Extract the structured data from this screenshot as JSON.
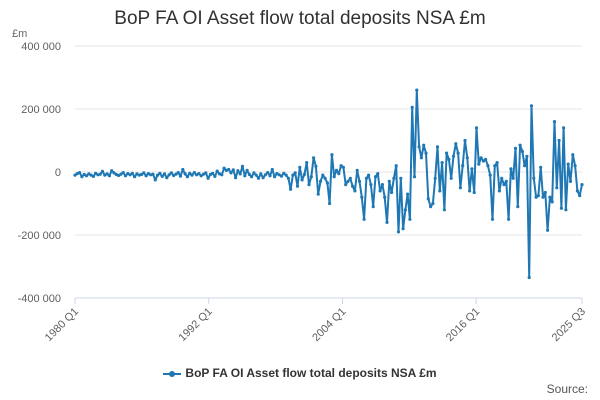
{
  "chart_data": {
    "type": "line",
    "title": "BoP FA OI Asset flow total deposits NSA £m",
    "ylabel": "£m",
    "ylim": [
      -400000,
      400000
    ],
    "y_ticks": [
      400000,
      200000,
      0,
      -200000,
      -400000
    ],
    "y_tick_labels": [
      "400 000",
      "200 000",
      "0",
      "-200 000",
      "-400 000"
    ],
    "x_tick_labels": [
      "1980 Q1",
      "1992 Q1",
      "2004 Q1",
      "2016 Q1",
      "2025 Q3"
    ],
    "x_range": [
      "1980 Q1",
      "2025 Q3"
    ],
    "legend_position": "bottom",
    "grid": "horizontal",
    "color": "#1f78b4",
    "series": [
      {
        "name": "BoP FA OI Asset flow total deposits NSA £m",
        "values": [
          -10000,
          -5000,
          -2000,
          -15000,
          -8000,
          -12000,
          -6000,
          -10000,
          -14000,
          -4000,
          -9000,
          -7000,
          2000,
          -10000,
          -6000,
          -12000,
          4000,
          -3000,
          -8000,
          -11000,
          -7000,
          -2000,
          -12000,
          -5000,
          -9000,
          -4000,
          -15000,
          -6000,
          -10000,
          -8000,
          -3000,
          -12000,
          -5000,
          -9000,
          -7000,
          -25000,
          -10000,
          -4000,
          -14000,
          -6000,
          -18000,
          -9000,
          -3000,
          -11000,
          -7000,
          -2000,
          -13000,
          8000,
          -6000,
          -15000,
          -4000,
          -10000,
          -2000,
          -9000,
          -5000,
          -12000,
          -7000,
          -3000,
          -20000,
          -8000,
          -4000,
          -14000,
          3000,
          -6000,
          -9000,
          12000,
          5000,
          8000,
          -3000,
          7000,
          -18000,
          4000,
          -6000,
          18000,
          -12000,
          5000,
          -8000,
          -15000,
          -3000,
          -10000,
          -20000,
          -6000,
          -18000,
          -9000,
          -2000,
          -12000,
          8000,
          -15000,
          -5000,
          -9000,
          -13000,
          -4000,
          -10000,
          -20000,
          -55000,
          -10000,
          -3000,
          -45000,
          15000,
          -25000,
          -8000,
          30000,
          -40000,
          -15000,
          45000,
          18000,
          -70000,
          -30000,
          -10000,
          -20000,
          -35000,
          -100000,
          55000,
          -15000,
          5000,
          -5000,
          20000,
          15000,
          -40000,
          -30000,
          -20000,
          -45000,
          -60000,
          5000,
          -30000,
          -80000,
          -150000,
          -20000,
          -10000,
          -40000,
          -110000,
          -15000,
          -5000,
          -60000,
          -40000,
          -80000,
          -160000,
          -30000,
          -65000,
          -20000,
          20000,
          -190000,
          -20000,
          -180000,
          -120000,
          -70000,
          -150000,
          205000,
          -15000,
          260000,
          80000,
          45000,
          85000,
          60000,
          -85000,
          -110000,
          -100000,
          -20000,
          80000,
          -60000,
          30000,
          -120000,
          60000,
          40000,
          -20000,
          50000,
          90000,
          60000,
          -50000,
          20000,
          100000,
          45000,
          -60000,
          10000,
          -65000,
          140000,
          25000,
          45000,
          35000,
          40000,
          20000,
          -10000,
          -150000,
          20000,
          30000,
          -60000,
          -20000,
          -40000,
          -30000,
          -150000,
          10000,
          -20000,
          75000,
          -110000,
          85000,
          65000,
          20000,
          50000,
          -335000,
          210000,
          -20000,
          -80000,
          -75000,
          15000,
          -80000,
          -65000,
          -185000,
          -80000,
          -95000,
          160000,
          -50000,
          100000,
          -115000,
          140000,
          -120000,
          25000,
          -30000,
          55000,
          20000,
          -60000,
          -75000,
          -40000
        ]
      }
    ],
    "source_label": "Source:"
  }
}
